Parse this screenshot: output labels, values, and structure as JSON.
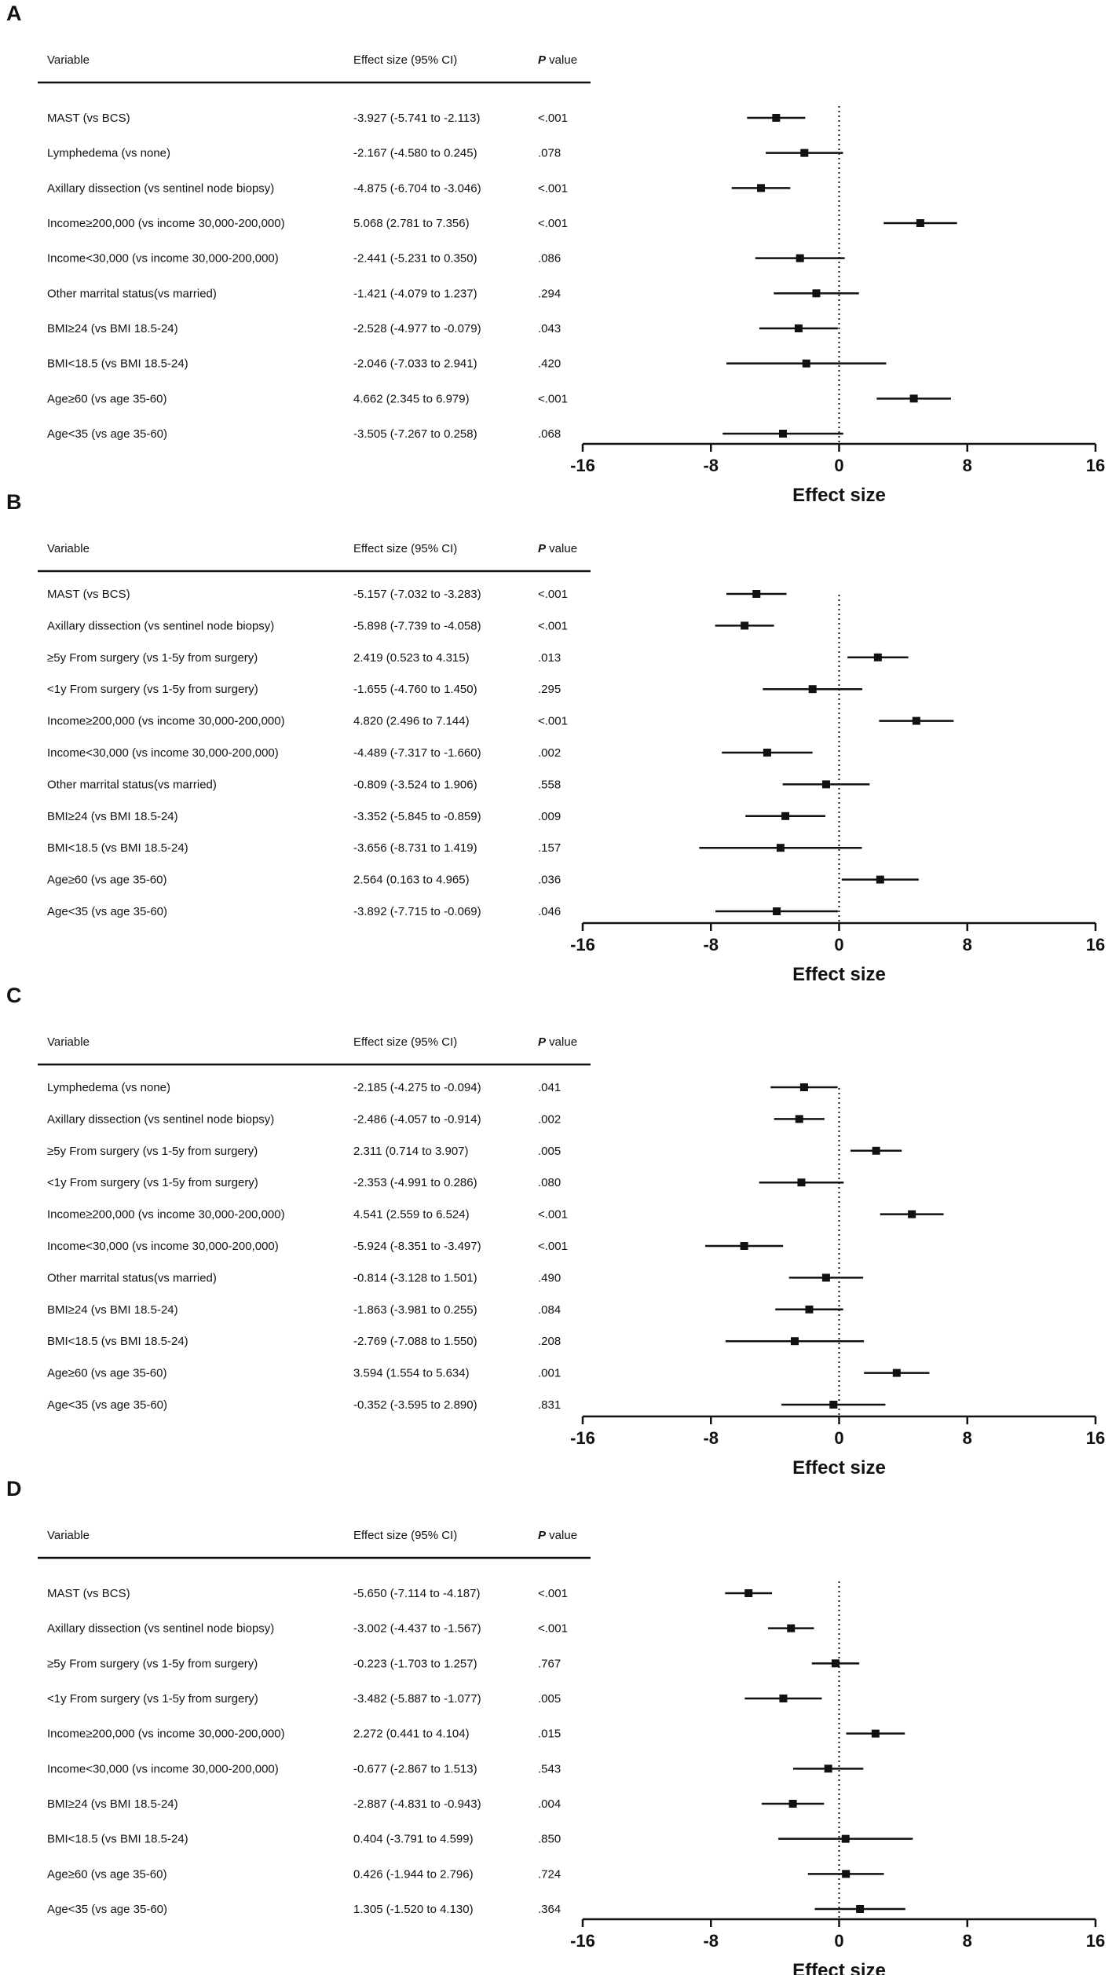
{
  "header": {
    "variable": "Variable",
    "effect": "Effect size (95% CI)",
    "p_italic": "P",
    "p_rest": " value"
  },
  "axis": {
    "xlabel": "Effect size",
    "ticks": [
      -16,
      -8,
      0,
      8,
      16
    ],
    "tick_labels": [
      "-16",
      "-8",
      "0",
      "8",
      "16"
    ],
    "xlim": [
      -16,
      16
    ],
    "reference_line": 0
  },
  "chart_data": [
    {
      "type": "forest",
      "panel": "A",
      "xlabel": "Effect size",
      "xlim": [
        -16,
        16
      ],
      "rows": [
        {
          "label": "MAST (vs BCS)",
          "effect": "-3.927 (-5.741 to -2.113)",
          "p": "<.001",
          "est": -3.927,
          "lo": -5.741,
          "hi": -2.113
        },
        {
          "label": "Lymphedema (vs none)",
          "effect": "-2.167 (-4.580 to 0.245)",
          "p": ".078",
          "est": -2.167,
          "lo": -4.58,
          "hi": 0.245
        },
        {
          "label": "Axillary dissection (vs sentinel node biopsy)",
          "effect": "-4.875 (-6.704 to -3.046)",
          "p": "<.001",
          "est": -4.875,
          "lo": -6.704,
          "hi": -3.046
        },
        {
          "label": "Income≥200,000 (vs income 30,000-200,000)",
          "effect": "5.068 (2.781 to 7.356)",
          "p": "<.001",
          "est": 5.068,
          "lo": 2.781,
          "hi": 7.356
        },
        {
          "label": "Income<30,000 (vs income 30,000-200,000)",
          "effect": "-2.441 (-5.231 to 0.350)",
          "p": ".086",
          "est": -2.441,
          "lo": -5.231,
          "hi": 0.35
        },
        {
          "label": "Other marrital status(vs married)",
          "effect": "-1.421 (-4.079 to 1.237)",
          "p": ".294",
          "est": -1.421,
          "lo": -4.079,
          "hi": 1.237
        },
        {
          "label": "BMI≥24 (vs BMI 18.5-24)",
          "effect": "-2.528 (-4.977 to -0.079)",
          "p": ".043",
          "est": -2.528,
          "lo": -4.977,
          "hi": -0.079
        },
        {
          "label": "BMI<18.5 (vs BMI 18.5-24)",
          "effect": "-2.046 (-7.033 to 2.941)",
          "p": ".420",
          "est": -2.046,
          "lo": -7.033,
          "hi": 2.941
        },
        {
          "label": "Age≥60 (vs age 35-60)",
          "effect": "4.662 (2.345 to 6.979)",
          "p": "<.001",
          "est": 4.662,
          "lo": 2.345,
          "hi": 6.979
        },
        {
          "label": "Age<35 (vs age 35-60)",
          "effect": "-3.505 (-7.267 to 0.258)",
          "p": ".068",
          "est": -3.505,
          "lo": -7.267,
          "hi": 0.258
        }
      ]
    },
    {
      "type": "forest",
      "panel": "B",
      "xlabel": "Effect size",
      "xlim": [
        -16,
        16
      ],
      "rows": [
        {
          "label": "MAST (vs BCS)",
          "effect": "-5.157 (-7.032 to -3.283)",
          "p": "<.001",
          "est": -5.157,
          "lo": -7.032,
          "hi": -3.283
        },
        {
          "label": "Axillary dissection (vs sentinel node biopsy)",
          "effect": "-5.898 (-7.739 to -4.058)",
          "p": "<.001",
          "est": -5.898,
          "lo": -7.739,
          "hi": -4.058
        },
        {
          "label": "≥5y From surgery (vs 1-5y from surgery)",
          "effect": "2.419 (0.523 to 4.315)",
          "p": ".013",
          "est": 2.419,
          "lo": 0.523,
          "hi": 4.315
        },
        {
          "label": "<1y From surgery (vs 1-5y from surgery)",
          "effect": "-1.655 (-4.760 to 1.450)",
          "p": ".295",
          "est": -1.655,
          "lo": -4.76,
          "hi": 1.45
        },
        {
          "label": "Income≥200,000 (vs income 30,000-200,000)",
          "effect": "4.820 (2.496 to 7.144)",
          "p": "<.001",
          "est": 4.82,
          "lo": 2.496,
          "hi": 7.144
        },
        {
          "label": "Income<30,000 (vs income 30,000-200,000)",
          "effect": "-4.489 (-7.317 to -1.660)",
          "p": ".002",
          "est": -4.489,
          "lo": -7.317,
          "hi": -1.66
        },
        {
          "label": "Other marrital status(vs married)",
          "effect": "-0.809 (-3.524 to 1.906)",
          "p": ".558",
          "est": -0.809,
          "lo": -3.524,
          "hi": 1.906
        },
        {
          "label": "BMI≥24 (vs BMI 18.5-24)",
          "effect": "-3.352 (-5.845 to -0.859)",
          "p": ".009",
          "est": -3.352,
          "lo": -5.845,
          "hi": -0.859
        },
        {
          "label": "BMI<18.5 (vs BMI 18.5-24)",
          "effect": "-3.656 (-8.731 to 1.419)",
          "p": ".157",
          "est": -3.656,
          "lo": -8.731,
          "hi": 1.419
        },
        {
          "label": "Age≥60 (vs age 35-60)",
          "effect": "2.564 (0.163 to 4.965)",
          "p": ".036",
          "est": 2.564,
          "lo": 0.163,
          "hi": 4.965
        },
        {
          "label": "Age<35 (vs age 35-60)",
          "effect": "-3.892 (-7.715 to -0.069)",
          "p": ".046",
          "est": -3.892,
          "lo": -7.715,
          "hi": -0.069
        }
      ]
    },
    {
      "type": "forest",
      "panel": "C",
      "xlabel": "Effect size",
      "xlim": [
        -16,
        16
      ],
      "rows": [
        {
          "label": "Lymphedema (vs none)",
          "effect": "-2.185 (-4.275 to -0.094)",
          "p": ".041",
          "est": -2.185,
          "lo": -4.275,
          "hi": -0.094
        },
        {
          "label": "Axillary dissection (vs sentinel node biopsy)",
          "effect": "-2.486 (-4.057 to -0.914)",
          "p": ".002",
          "est": -2.486,
          "lo": -4.057,
          "hi": -0.914
        },
        {
          "label": "≥5y From surgery (vs 1-5y from surgery)",
          "effect": "2.311 (0.714 to 3.907)",
          "p": ".005",
          "est": 2.311,
          "lo": 0.714,
          "hi": 3.907
        },
        {
          "label": "<1y From surgery (vs 1-5y from surgery)",
          "effect": "-2.353 (-4.991 to 0.286)",
          "p": ".080",
          "est": -2.353,
          "lo": -4.991,
          "hi": 0.286
        },
        {
          "label": "Income≥200,000 (vs income 30,000-200,000)",
          "effect": "4.541 (2.559 to 6.524)",
          "p": "<.001",
          "est": 4.541,
          "lo": 2.559,
          "hi": 6.524
        },
        {
          "label": "Income<30,000 (vs income 30,000-200,000)",
          "effect": "-5.924 (-8.351 to -3.497)",
          "p": "<.001",
          "est": -5.924,
          "lo": -8.351,
          "hi": -3.497
        },
        {
          "label": "Other marrital status(vs married)",
          "effect": "-0.814 (-3.128 to 1.501)",
          "p": ".490",
          "est": -0.814,
          "lo": -3.128,
          "hi": 1.501
        },
        {
          "label": "BMI≥24 (vs BMI 18.5-24)",
          "effect": "-1.863 (-3.981 to 0.255)",
          "p": ".084",
          "est": -1.863,
          "lo": -3.981,
          "hi": 0.255
        },
        {
          "label": "BMI<18.5 (vs BMI 18.5-24)",
          "effect": "-2.769 (-7.088 to 1.550)",
          "p": ".208",
          "est": -2.769,
          "lo": -7.088,
          "hi": 1.55
        },
        {
          "label": "Age≥60 (vs age 35-60)",
          "effect": "3.594 (1.554 to 5.634)",
          "p": ".001",
          "est": 3.594,
          "lo": 1.554,
          "hi": 5.634
        },
        {
          "label": "Age<35 (vs age 35-60)",
          "effect": "-0.352 (-3.595 to 2.890)",
          "p": ".831",
          "est": -0.352,
          "lo": -3.595,
          "hi": 2.89
        }
      ]
    },
    {
      "type": "forest",
      "panel": "D",
      "xlabel": "Effect size",
      "xlim": [
        -16,
        16
      ],
      "rows": [
        {
          "label": "MAST (vs BCS)",
          "effect": "-5.650 (-7.114 to -4.187)",
          "p": "<.001",
          "est": -5.65,
          "lo": -7.114,
          "hi": -4.187
        },
        {
          "label": "Axillary dissection (vs sentinel node biopsy)",
          "effect": "-3.002 (-4.437 to -1.567)",
          "p": "<.001",
          "est": -3.002,
          "lo": -4.437,
          "hi": -1.567
        },
        {
          "label": "≥5y From surgery (vs 1-5y from surgery)",
          "effect": "-0.223 (-1.703 to 1.257)",
          "p": ".767",
          "est": -0.223,
          "lo": -1.703,
          "hi": 1.257
        },
        {
          "label": "<1y From surgery (vs 1-5y from surgery)",
          "effect": "-3.482 (-5.887 to -1.077)",
          "p": ".005",
          "est": -3.482,
          "lo": -5.887,
          "hi": -1.077
        },
        {
          "label": "Income≥200,000 (vs income 30,000-200,000)",
          "effect": "2.272 (0.441 to 4.104)",
          "p": ".015",
          "est": 2.272,
          "lo": 0.441,
          "hi": 4.104
        },
        {
          "label": "Income<30,000 (vs income 30,000-200,000)",
          "effect": "-0.677 (-2.867 to 1.513)",
          "p": ".543",
          "est": -0.677,
          "lo": -2.867,
          "hi": 1.513
        },
        {
          "label": "BMI≥24 (vs BMI 18.5-24)",
          "effect": "-2.887 (-4.831 to -0.943)",
          "p": ".004",
          "est": -2.887,
          "lo": -4.831,
          "hi": -0.943
        },
        {
          "label": "BMI<18.5 (vs BMI 18.5-24)",
          "effect": "0.404 (-3.791 to 4.599)",
          "p": ".850",
          "est": 0.404,
          "lo": -3.791,
          "hi": 4.599
        },
        {
          "label": "Age≥60 (vs age 35-60)",
          "effect": "0.426 (-1.944 to 2.796)",
          "p": ".724",
          "est": 0.426,
          "lo": -1.944,
          "hi": 2.796
        },
        {
          "label": "Age<35 (vs age 35-60)",
          "effect": "1.305 (-1.520 to 4.130)",
          "p": ".364",
          "est": 1.305,
          "lo": -1.52,
          "hi": 4.13
        }
      ]
    }
  ]
}
